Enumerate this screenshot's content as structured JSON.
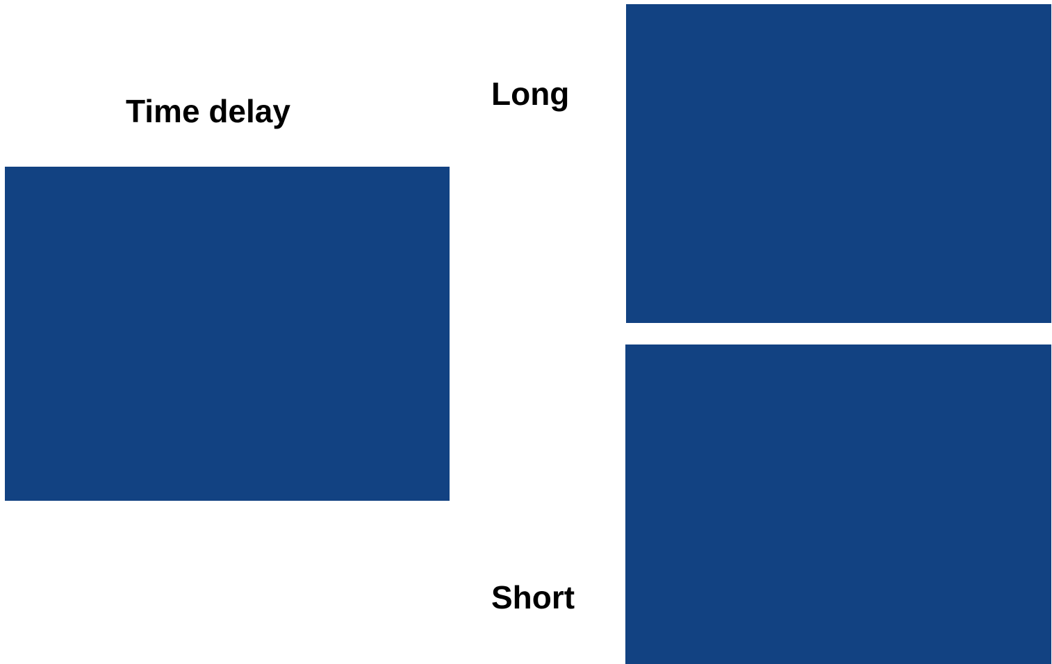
{
  "title": "Time delay",
  "labels": {
    "long": "Long",
    "short": "Short"
  },
  "panel_color": "#124282"
}
